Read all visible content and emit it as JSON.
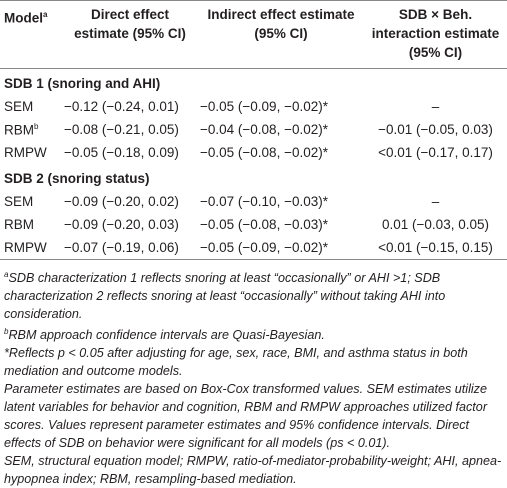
{
  "header": {
    "model": "Model",
    "model_sup": "a",
    "columns": [
      "Direct effect estimate (95% CI)",
      "Indirect effect estimate (95% CI)",
      "SDB × Beh. interaction estimate (95% CI)"
    ]
  },
  "sections": [
    {
      "title": "SDB 1 (snoring and AHI)",
      "rows": [
        {
          "model": "SEM",
          "cells": [
            "−0.12 (−0.24, 0.01)",
            "−0.05 (−0.09, −0.02)*",
            "–"
          ]
        },
        {
          "model": "RBM",
          "sup": "b",
          "cells": [
            "−0.08 (−0.21, 0.05)",
            "−0.04 (−0.08, −0.02)*",
            "−0.01 (−0.05, 0.03)"
          ]
        },
        {
          "model": "RMPW",
          "cells": [
            "−0.05 (−0.18, 0.09)",
            "−0.05 (−0.08, −0.02)*",
            "<0.01 (−0.17, 0.17)"
          ]
        }
      ]
    },
    {
      "title": "SDB 2 (snoring status)",
      "rows": [
        {
          "model": "SEM",
          "cells": [
            "−0.09 (−0.20, 0.02)",
            "−0.07 (−0.10, −0.03)*",
            "–"
          ]
        },
        {
          "model": "RBM",
          "cells": [
            "−0.09 (−0.20, 0.03)",
            "−0.05 (−0.08, −0.03)*",
            "0.01 (−0.03, 0.05)"
          ]
        },
        {
          "model": "RMPW",
          "cells": [
            "−0.07 (−0.19, 0.06)",
            "−0.05 (−0.09, −0.02)*",
            "<0.01 (−0.15, 0.15)"
          ]
        }
      ]
    }
  ],
  "footnotes": [
    {
      "mark": "a",
      "text": "SDB characterization 1 reflects snoring at least “occasionally” or AHI >1; SDB characterization 2 reflects snoring at least “occasionally” without taking AHI into consideration."
    },
    {
      "mark": "b",
      "text": "RBM approach confidence intervals are Quasi-Bayesian."
    },
    {
      "text": "*Reflects p < 0.05 after adjusting for age, sex, race, BMI, and asthma status in both mediation and outcome models."
    },
    {
      "text": "Parameter estimates are based on Box-Cox transformed values. SEM estimates utilize latent variables for behavior and cognition, RBM and RMPW approaches utilized factor scores. Values represent parameter estimates and 95% confidence intervals. Direct effects of SDB on behavior were significant for all models (ps < 0.01)."
    },
    {
      "text": "SEM, structural equation model; RMPW, ratio-of-mediator-probability-weight; AHI, apnea-hypopnea index; RBM, resampling-based mediation."
    }
  ]
}
